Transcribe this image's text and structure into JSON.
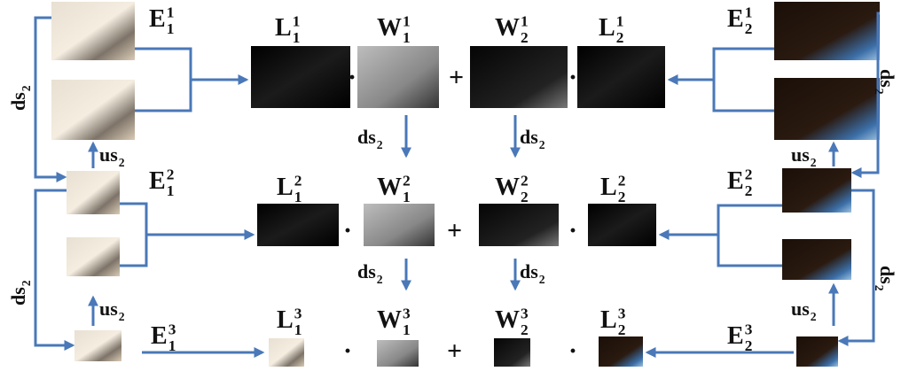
{
  "rows": [
    {
      "labels": [
        {
          "base": "E",
          "sub": "1",
          "sup": "1"
        },
        {
          "base": "L",
          "sub": "1",
          "sup": "1"
        },
        {
          "base": "W",
          "sub": "1",
          "sup": "1"
        },
        {
          "base": "W",
          "sub": "2",
          "sup": "1"
        },
        {
          "base": "L",
          "sub": "2",
          "sup": "1"
        },
        {
          "base": "E",
          "sub": "2",
          "sup": "1"
        }
      ],
      "operators": [
        "·",
        "+",
        "·"
      ]
    },
    {
      "labels": [
        {
          "base": "E",
          "sub": "1",
          "sup": "2"
        },
        {
          "base": "L",
          "sub": "1",
          "sup": "2"
        },
        {
          "base": "W",
          "sub": "1",
          "sup": "2"
        },
        {
          "base": "W",
          "sub": "2",
          "sup": "2"
        },
        {
          "base": "L",
          "sub": "2",
          "sup": "2"
        },
        {
          "base": "E",
          "sub": "2",
          "sup": "2"
        }
      ],
      "operators": [
        "·",
        "+",
        "·"
      ]
    },
    {
      "labels": [
        {
          "base": "E",
          "sub": "1",
          "sup": "3"
        },
        {
          "base": "L",
          "sub": "1",
          "sup": "3"
        },
        {
          "base": "W",
          "sub": "1",
          "sup": "3"
        },
        {
          "base": "W",
          "sub": "2",
          "sup": "3"
        },
        {
          "base": "L",
          "sub": "2",
          "sup": "3"
        },
        {
          "base": "E",
          "sub": "2",
          "sup": "3"
        }
      ],
      "operators": [
        "·",
        "+",
        "·"
      ]
    }
  ],
  "arrow_labels": [
    {
      "base": "ds",
      "sub": "2"
    },
    {
      "base": "us",
      "sub": "2"
    },
    {
      "base": "ds",
      "sub": "2"
    },
    {
      "base": "us",
      "sub": "2"
    },
    {
      "base": "ds",
      "sub": "2"
    },
    {
      "base": "ds",
      "sub": "2"
    },
    {
      "base": "ds",
      "sub": "2"
    },
    {
      "base": "ds",
      "sub": "2"
    },
    {
      "base": "ds",
      "sub": "2"
    },
    {
      "base": "us",
      "sub": "2"
    },
    {
      "base": "ds",
      "sub": "2"
    },
    {
      "base": "us",
      "sub": "2"
    }
  ]
}
